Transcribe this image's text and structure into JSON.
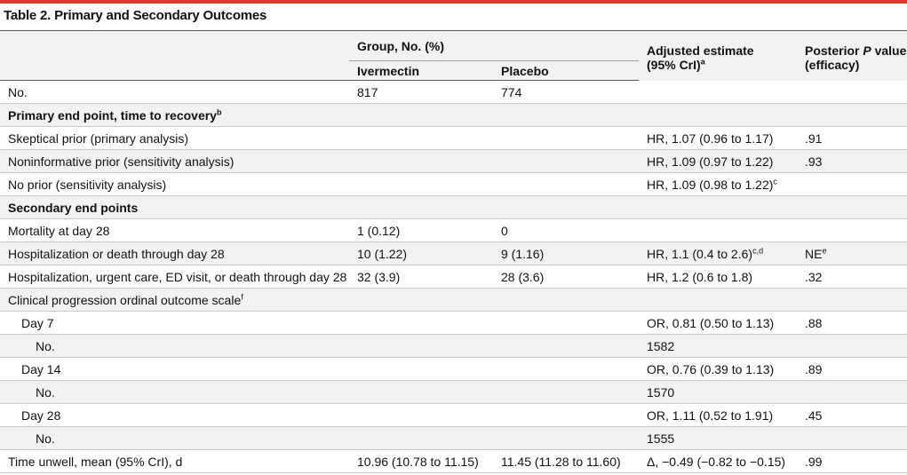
{
  "title": "Table 2. Primary and Secondary Outcomes",
  "header": {
    "group": "Group, No. (%)",
    "ivermectin": "Ivermectin",
    "placebo": "Placebo",
    "adjusted_estimate": "Adjusted estimate",
    "adjusted_estimate_2": "(95% CrI)",
    "adjusted_estimate_sup": "a",
    "posterior_pre": "Posterior ",
    "posterior_p": "P",
    "posterior_post": " value",
    "posterior_2": "(efficacy)"
  },
  "rows": [
    {
      "label": "No.",
      "iver": "817",
      "plac": "774",
      "est": "",
      "est_sup": "",
      "p": "",
      "p_sup": ""
    },
    {
      "label": "Primary end point, time to recovery",
      "label_sup": "b",
      "iver": "",
      "plac": "",
      "est": "",
      "est_sup": "",
      "p": "",
      "p_sup": ""
    },
    {
      "label": "Skeptical prior (primary analysis)",
      "iver": "",
      "plac": "",
      "est": "HR, 1.07 (0.96 to 1.17)",
      "est_sup": "",
      "p": ".91",
      "p_sup": ""
    },
    {
      "label": "Noninformative prior (sensitivity analysis)",
      "iver": "",
      "plac": "",
      "est": "HR, 1.09 (0.97 to 1.22)",
      "est_sup": "",
      "p": ".93",
      "p_sup": ""
    },
    {
      "label": "No prior (sensitivity analysis)",
      "iver": "",
      "plac": "",
      "est": "HR, 1.09 (0.98 to 1.22)",
      "est_sup": "c",
      "p": "",
      "p_sup": ""
    },
    {
      "label": "Secondary end points",
      "iver": "",
      "plac": "",
      "est": "",
      "est_sup": "",
      "p": "",
      "p_sup": ""
    },
    {
      "label": "Mortality at day 28",
      "iver": "1 (0.12)",
      "plac": "0",
      "est": "",
      "est_sup": "",
      "p": "",
      "p_sup": ""
    },
    {
      "label": "Hospitalization or death through day 28",
      "iver": "10 (1.22)",
      "plac": "9 (1.16)",
      "est": "HR, 1.1 (0.4 to 2.6)",
      "est_sup": "c,d",
      "p": "NE",
      "p_sup": "e"
    },
    {
      "label": "Hospitalization, urgent care, ED visit, or death through day 28",
      "iver": "32 (3.9)",
      "plac": "28 (3.6)",
      "est": "HR, 1.2 (0.6 to 1.8)",
      "est_sup": "",
      "p": ".32",
      "p_sup": ""
    },
    {
      "label": "Clinical progression ordinal outcome scale",
      "label_sup": "f",
      "iver": "",
      "plac": "",
      "est": "",
      "est_sup": "",
      "p": "",
      "p_sup": ""
    },
    {
      "label": "Day 7",
      "iver": "",
      "plac": "",
      "est": "OR, 0.81 (0.50 to 1.13)",
      "est_sup": "",
      "p": ".88",
      "p_sup": ""
    },
    {
      "label": "No.",
      "iver": "",
      "plac": "",
      "est": "1582",
      "est_sup": "",
      "p": "",
      "p_sup": ""
    },
    {
      "label": "Day 14",
      "iver": "",
      "plac": "",
      "est": "OR, 0.76 (0.39 to 1.13)",
      "est_sup": "",
      "p": ".89",
      "p_sup": ""
    },
    {
      "label": "No.",
      "iver": "",
      "plac": "",
      "est": "1570",
      "est_sup": "",
      "p": "",
      "p_sup": ""
    },
    {
      "label": "Day 28",
      "iver": "",
      "plac": "",
      "est": "OR, 1.11 (0.52 to 1.91)",
      "est_sup": "",
      "p": ".45",
      "p_sup": ""
    },
    {
      "label": "No.",
      "iver": "",
      "plac": "",
      "est": "1555",
      "est_sup": "",
      "p": "",
      "p_sup": ""
    },
    {
      "label": "Time unwell, mean (95% CrI), d",
      "iver": "10.96 (10.78 to 11.15)",
      "plac": "11.45 (11.28 to 11.60)",
      "est": "Δ, −0.49 (−0.82 to −0.15)",
      "est_sup": "",
      "p": ".99",
      "p_sup": ""
    }
  ]
}
